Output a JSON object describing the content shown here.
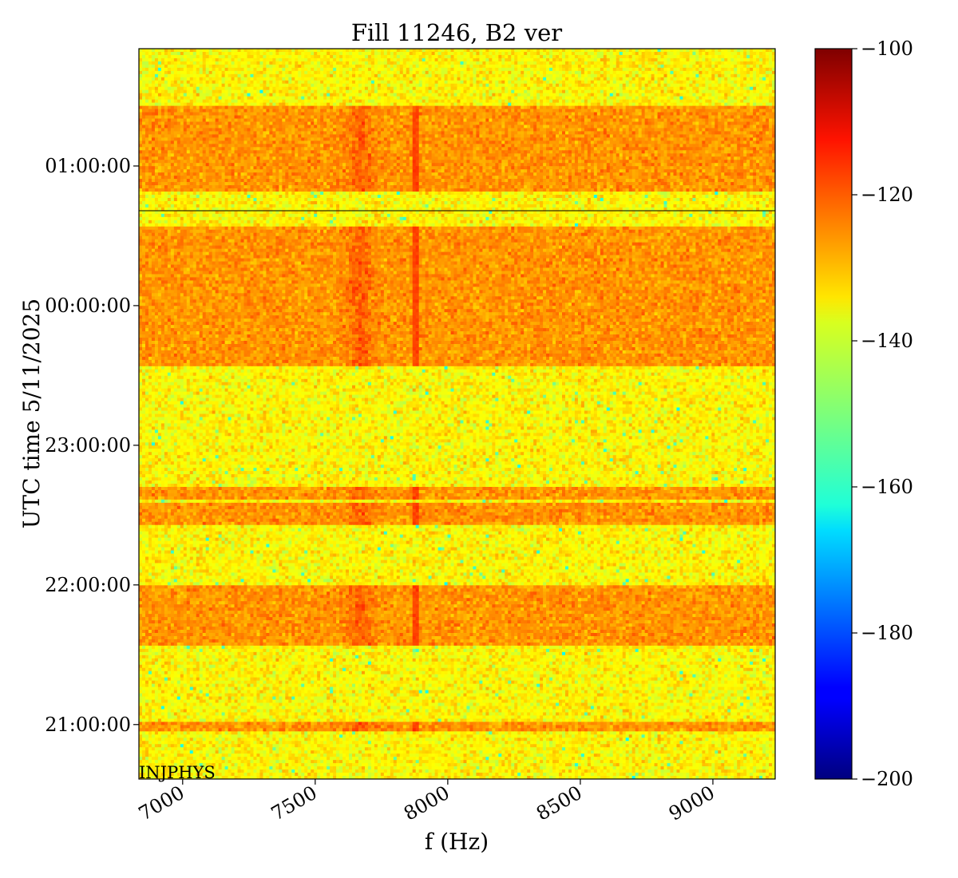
{
  "chart_data": {
    "type": "heatmap",
    "title": "Fill 11246, B2 ver",
    "xlabel": "f (Hz)",
    "ylabel": "UTC time 5/11/2025",
    "xlim": [
      6835,
      9235
    ],
    "x_ticks": [
      {
        "value": 7000,
        "label": "7000"
      },
      {
        "value": 7500,
        "label": "7500"
      },
      {
        "value": 8000,
        "label": "8000"
      },
      {
        "value": 8500,
        "label": "8500"
      },
      {
        "value": 9000,
        "label": "9000"
      }
    ],
    "y_ticks": [
      {
        "hours": 21.0,
        "label": "21:00:00"
      },
      {
        "hours": 22.0,
        "label": "22:00:00"
      },
      {
        "hours": 23.0,
        "label": "23:00:00"
      },
      {
        "hours": 24.0,
        "label": "00:00:00"
      },
      {
        "hours": 25.0,
        "label": "01:00:00"
      }
    ],
    "ylim_hours": [
      20.61,
      25.84
    ],
    "colorbar": {
      "colormap": "jet",
      "range": [
        -200,
        -100
      ],
      "ticks": [
        {
          "value": -100,
          "label": "−100"
        },
        {
          "value": -120,
          "label": "−120"
        },
        {
          "value": -140,
          "label": "−140"
        },
        {
          "value": -160,
          "label": "−160"
        },
        {
          "value": -180,
          "label": "−180"
        },
        {
          "value": -200,
          "label": "−200"
        }
      ]
    },
    "background_level_db": -137,
    "beam_on_level_db": -127,
    "features": {
      "hump_freq_hz": 7670,
      "hump_width_hz": 45,
      "line_freq_hz": 7880,
      "line_level_db": -119
    },
    "beam_on_intervals_hours": [
      [
        20.95,
        21.02
      ],
      [
        21.57,
        22.0
      ],
      [
        22.44,
        22.58
      ],
      [
        22.61,
        22.71
      ],
      [
        23.57,
        24.15
      ],
      [
        24.15,
        24.57
      ],
      [
        24.81,
        25.42
      ]
    ],
    "marker_line_hours": 24.68,
    "annotation": "INJPHYS"
  }
}
